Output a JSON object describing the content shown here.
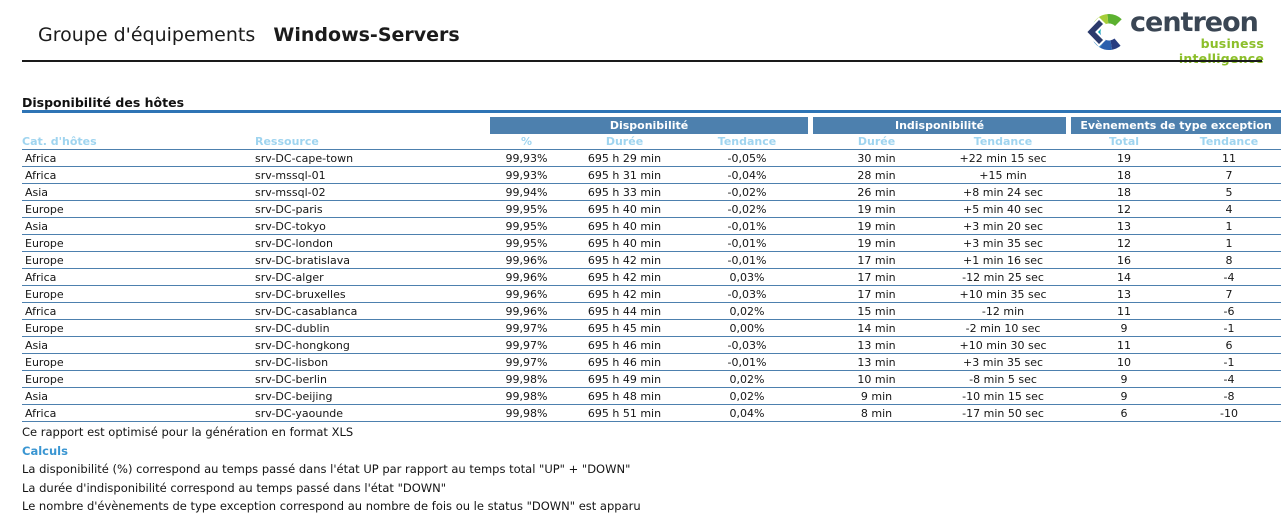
{
  "header": {
    "title_prefix": "Groupe d'équipements",
    "title_name": "Windows-Servers",
    "logo": {
      "brand": "centreon",
      "tagline": "business intelligence"
    }
  },
  "section": {
    "title": "Disponibilité des hôtes"
  },
  "table": {
    "groups": [
      {
        "label": "Disponibilité"
      },
      {
        "label": "Indisponibilité"
      },
      {
        "label": "Evènements de type exception"
      }
    ],
    "columns": [
      "Cat. d'hôtes",
      "Ressource",
      "%",
      "Durée",
      "Tendance",
      "Durée",
      "Tendance",
      "Total",
      "Tendance"
    ],
    "rows": [
      [
        "Africa",
        "srv-DC-cape-town",
        "99,93%",
        "695 h 29 min",
        "-0,05%",
        "30 min",
        "+22 min 15 sec",
        "19",
        "11"
      ],
      [
        "Africa",
        "srv-mssql-01",
        "99,93%",
        "695 h 31 min",
        "-0,04%",
        "28 min",
        "+15 min",
        "18",
        "7"
      ],
      [
        "Asia",
        "srv-mssql-02",
        "99,94%",
        "695 h 33 min",
        "-0,02%",
        "26 min",
        "+8 min 24 sec",
        "18",
        "5"
      ],
      [
        "Europe",
        "srv-DC-paris",
        "99,95%",
        "695 h 40 min",
        "-0,02%",
        "19 min",
        "+5 min 40 sec",
        "12",
        "4"
      ],
      [
        "Asia",
        "srv-DC-tokyo",
        "99,95%",
        "695 h 40 min",
        "-0,01%",
        "19 min",
        "+3 min 20 sec",
        "13",
        "1"
      ],
      [
        "Europe",
        "srv-DC-london",
        "99,95%",
        "695 h 40 min",
        "-0,01%",
        "19 min",
        "+3 min 35 sec",
        "12",
        "1"
      ],
      [
        "Europe",
        "srv-DC-bratislava",
        "99,96%",
        "695 h 42 min",
        "-0,01%",
        "17 min",
        "+1 min 16 sec",
        "16",
        "8"
      ],
      [
        "Africa",
        "srv-DC-alger",
        "99,96%",
        "695 h 42 min",
        "0,03%",
        "17 min",
        "-12 min 25 sec",
        "14",
        "-4"
      ],
      [
        "Europe",
        "srv-DC-bruxelles",
        "99,96%",
        "695 h 42 min",
        "-0,03%",
        "17 min",
        "+10 min 35 sec",
        "13",
        "7"
      ],
      [
        "Africa",
        "srv-DC-casablanca",
        "99,96%",
        "695 h 44 min",
        "0,02%",
        "15 min",
        "-12 min",
        "11",
        "-6"
      ],
      [
        "Europe",
        "srv-DC-dublin",
        "99,97%",
        "695 h 45 min",
        "0,00%",
        "14 min",
        "-2 min 10 sec",
        "9",
        "-1"
      ],
      [
        "Asia",
        "srv-DC-hongkong",
        "99,97%",
        "695 h 46 min",
        "-0,03%",
        "13 min",
        "+10 min 30 sec",
        "11",
        "6"
      ],
      [
        "Europe",
        "srv-DC-lisbon",
        "99,97%",
        "695 h 46 min",
        "-0,01%",
        "13 min",
        "+3 min 35 sec",
        "10",
        "-1"
      ],
      [
        "Europe",
        "srv-DC-berlin",
        "99,98%",
        "695 h 49 min",
        "0,02%",
        "10 min",
        "-8 min 5 sec",
        "9",
        "-4"
      ],
      [
        "Asia",
        "srv-DC-beijing",
        "99,98%",
        "695 h 48 min",
        "0,02%",
        "9 min",
        "-10 min 15 sec",
        "9",
        "-8"
      ],
      [
        "Africa",
        "srv-DC-yaounde",
        "99,98%",
        "695 h 51 min",
        "0,04%",
        "8 min",
        "-17 min 50 sec",
        "6",
        "-10"
      ]
    ]
  },
  "footer": {
    "note": "Ce rapport est optimisé pour la génération en format XLS",
    "calc_title": "Calculs",
    "lines": [
      "La disponibilité (%) correspond au temps passé dans l'état UP par rapport au temps total \"UP\" + \"DOWN\"",
      "La durée d'indisponibilité correspond au temps passé dans l'état \"DOWN\"",
      "Le nombre d'évènements de type exception correspond au nombre de fois ou le status \"DOWN\" est apparu"
    ]
  },
  "colors": {
    "group_header_bg": "#4d80ae",
    "subheader_text": "#9fd4ef",
    "section_underline": "#2e74b5",
    "calc_title_blue": "#3a96d2",
    "logo_green": "#8cbf2a"
  }
}
